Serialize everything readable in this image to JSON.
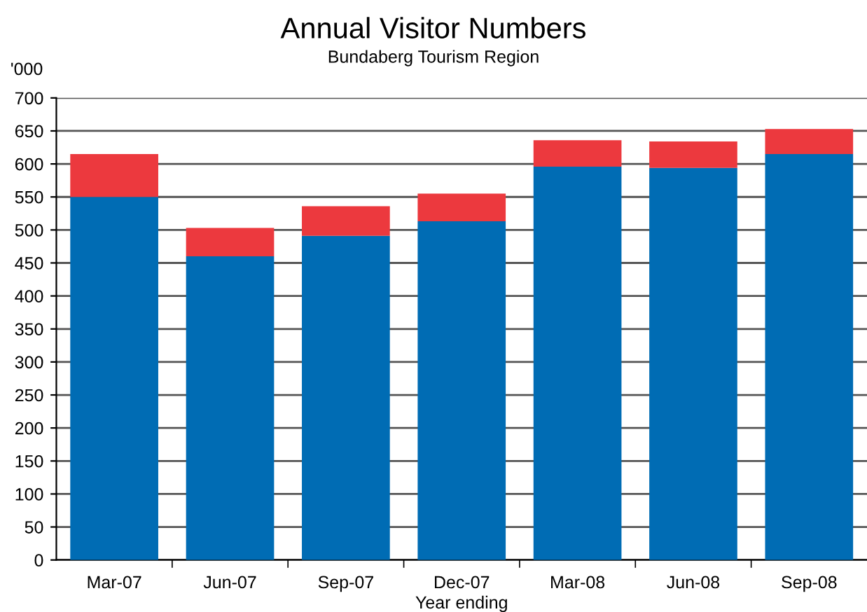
{
  "chart_data": {
    "type": "bar",
    "title": "Annual Visitor Numbers",
    "subtitle": "Bundaberg Tourism Region",
    "ylabel": "'000",
    "xlabel": "Year ending",
    "stacked": true,
    "grid": "y",
    "legend": false,
    "categories": [
      "Mar-07",
      "Jun-07",
      "Sep-07",
      "Dec-07",
      "Mar-08",
      "Jun-08",
      "Sep-08"
    ],
    "series": [
      {
        "color": "#006cb4",
        "values": [
          550,
          460,
          491,
          513,
          596,
          594,
          615
        ]
      },
      {
        "color": "#ec393e",
        "values": [
          65,
          43,
          45,
          42,
          40,
          40,
          38
        ]
      }
    ],
    "ylim": [
      0,
      700
    ],
    "yticks": [
      0,
      50,
      100,
      150,
      200,
      250,
      300,
      350,
      400,
      450,
      500,
      550,
      600,
      650,
      700
    ]
  }
}
